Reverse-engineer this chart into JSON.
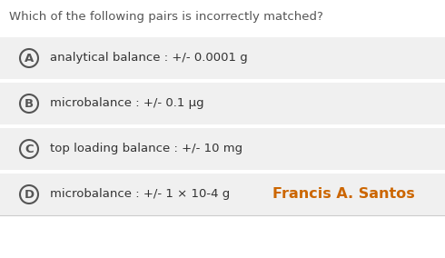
{
  "title": "Which of the following pairs is incorrectly matched?",
  "title_color": "#555555",
  "title_fontsize": 9.5,
  "white_color": "#ffffff",
  "options": [
    {
      "letter": "A",
      "text": "analytical balance : +/- 0.0001 g"
    },
    {
      "letter": "B",
      "text": "microbalance : +/- 0.1 µg"
    },
    {
      "letter": "C",
      "text": "top loading balance : +/- 10 mg"
    },
    {
      "letter": "D",
      "text": "microbalance : +/- 1 × 10-4 g"
    }
  ],
  "signature": "Francis A. Santos",
  "signature_color": "#cc6600",
  "signature_fontsize": 11.5,
  "option_fontsize": 9.5,
  "letter_fontsize": 9.5,
  "option_bg": "#f0f0f0",
  "option_text_color": "#333333",
  "circle_edge_color": "#555555",
  "bottom_line_color": "#cccccc"
}
